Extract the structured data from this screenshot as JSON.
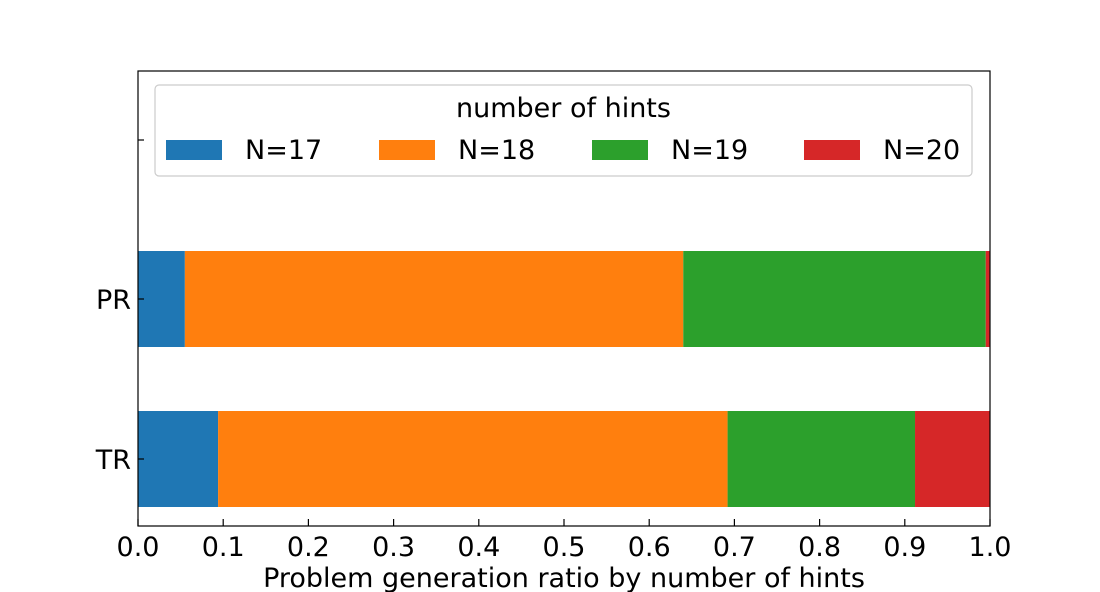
{
  "chart_data": {
    "type": "bar",
    "orientation": "horizontal",
    "stacked": true,
    "categories": [
      "TR",
      "PR",
      ""
    ],
    "series": [
      {
        "name": "N=17",
        "color": "#1f77b4",
        "values": [
          0.094,
          0.055,
          0
        ]
      },
      {
        "name": "N=18",
        "color": "#ff7f0e",
        "values": [
          0.598,
          0.585,
          0
        ]
      },
      {
        "name": "N=19",
        "color": "#2ca02c",
        "values": [
          0.22,
          0.355,
          0
        ]
      },
      {
        "name": "N=20",
        "color": "#d62728",
        "values": [
          0.088,
          0.005,
          0
        ]
      }
    ],
    "xlabel": "Problem generation ratio by number of hints",
    "ylabel": "",
    "xlim": [
      0.0,
      1.0
    ],
    "xticks": [
      "0.0",
      "0.1",
      "0.2",
      "0.3",
      "0.4",
      "0.5",
      "0.6",
      "0.7",
      "0.8",
      "0.9",
      "1.0"
    ],
    "legend": {
      "title": "number of hints",
      "placement": "top",
      "columns": 4
    },
    "grid": false
  }
}
